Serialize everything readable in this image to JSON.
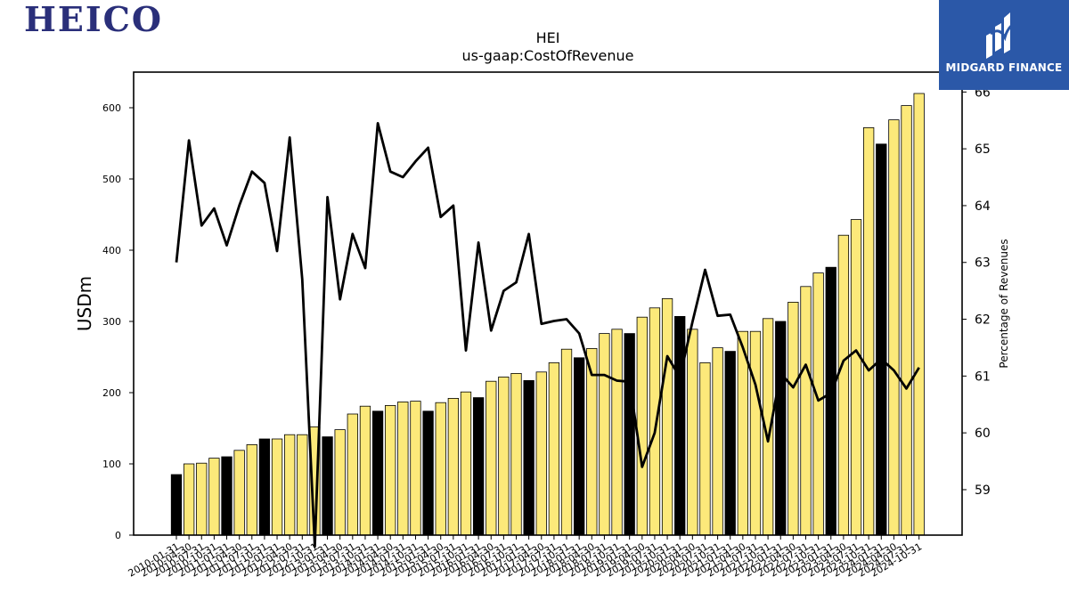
{
  "brand": {
    "company_logo_text": "HEICO",
    "publisher": "MIDGARD FINANCE",
    "logo_color": "#2a2f7a",
    "publisher_bg": "#2b58a8"
  },
  "chart_data": {
    "type": "bar",
    "title": "HEI",
    "subtitle": "us-gaap:CostOfRevenue",
    "ylabel": "USDm",
    "y2label": "Percentage of Revenues",
    "ylim": [
      0,
      650
    ],
    "y2lim": [
      58.2,
      66.35
    ],
    "yticks": [
      0,
      100,
      200,
      300,
      400,
      500,
      600
    ],
    "y2ticks": [
      59,
      60,
      61,
      62,
      63,
      64,
      65,
      66
    ],
    "grid": false,
    "colors": {
      "quarter_bar": "#fce97a",
      "annual_bar": "#000000",
      "line": "#000000"
    },
    "categories": [
      "2010-01-31",
      "2010-04-30",
      "2010-07-31",
      "2010-10-31",
      "2011-01-31",
      "2011-04-30",
      "2011-07-31",
      "2011-10-31",
      "2012-01-31",
      "2012-04-30",
      "2012-07-31",
      "2012-10-31",
      "2013-01-31",
      "2013-04-30",
      "2013-07-31",
      "2013-10-31",
      "2014-01-31",
      "2014-04-30",
      "2014-07-31",
      "2014-10-31",
      "2015-01-31",
      "2015-04-30",
      "2015-07-31",
      "2015-10-31",
      "2016-01-31",
      "2016-04-30",
      "2016-07-31",
      "2016-10-31",
      "2017-01-31",
      "2017-04-30",
      "2017-07-31",
      "2017-10-31",
      "2018-01-31",
      "2018-04-30",
      "2018-07-31",
      "2018-10-31",
      "2019-01-31",
      "2019-04-30",
      "2019-07-31",
      "2019-10-31",
      "2020-01-31",
      "2020-04-30",
      "2020-07-31",
      "2020-10-31",
      "2021-01-31",
      "2021-04-30",
      "2021-07-31",
      "2021-10-31",
      "2022-01-31",
      "2022-04-30",
      "2022-07-31",
      "2022-10-31",
      "2023-01-31",
      "2023-04-30",
      "2023-07-31",
      "2023-10-31",
      "2024-01-31",
      "2024-04-30",
      "2024-07-31",
      "2024-10-31"
    ],
    "series": [
      {
        "name": "Cost of Revenue",
        "kind": "bar",
        "values": [
          85,
          100,
          101,
          108,
          110,
          119,
          127,
          135,
          135,
          141,
          141,
          152,
          138,
          148,
          170,
          181,
          174,
          182,
          187,
          188,
          174,
          186,
          192,
          201,
          193,
          216,
          222,
          227,
          217,
          229,
          242,
          261,
          249,
          262,
          283,
          289,
          283,
          306,
          319,
          332,
          307,
          289,
          242,
          263,
          258,
          286,
          286,
          304,
          300,
          327,
          349,
          368,
          376,
          421,
          443,
          572,
          549,
          583,
          603,
          620
        ],
        "annual_flags": [
          1,
          0,
          0,
          0,
          1,
          0,
          0,
          1,
          0,
          0,
          0,
          0,
          1,
          0,
          0,
          0,
          1,
          0,
          0,
          0,
          1,
          0,
          0,
          0,
          1,
          0,
          0,
          0,
          1,
          0,
          0,
          0,
          1,
          0,
          0,
          0,
          1,
          0,
          0,
          0,
          1,
          0,
          0,
          0,
          1,
          0,
          0,
          0,
          1,
          0,
          0,
          0,
          1,
          0,
          0,
          0,
          1,
          0,
          0,
          0
        ]
      },
      {
        "name": "Percentage of Revenues",
        "kind": "line",
        "axis": "right",
        "values": [
          63.0,
          65.15,
          63.65,
          63.95,
          63.3,
          64.0,
          64.6,
          64.4,
          63.2,
          65.2,
          62.7,
          58.0,
          64.15,
          62.35,
          63.5,
          62.9,
          65.45,
          64.6,
          64.5,
          64.78,
          65.02,
          63.8,
          64.0,
          61.45,
          63.35,
          61.8,
          62.5,
          62.65,
          63.5,
          61.92,
          61.97,
          62.0,
          61.75,
          61.02,
          61.02,
          60.92,
          60.9,
          59.4,
          60.0,
          61.35,
          60.98,
          61.95,
          62.87,
          62.06,
          62.08,
          61.5,
          60.85,
          59.85,
          61.05,
          60.8,
          61.2,
          60.57,
          60.7,
          61.27,
          61.45,
          61.1,
          61.3,
          61.1,
          60.78,
          61.15
        ]
      }
    ]
  }
}
